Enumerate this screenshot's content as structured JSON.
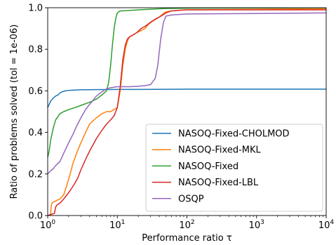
{
  "chart_data": {
    "type": "line",
    "title": "",
    "xlabel": "Performance ratio τ",
    "ylabel": "Ratio of problems solved (tol = 1e-06)",
    "xscale": "log",
    "xlim": [
      1,
      10000
    ],
    "ylim": [
      0,
      1.0
    ],
    "xticks": [
      {
        "value": 1,
        "base": "10",
        "exp": "0"
      },
      {
        "value": 10,
        "base": "10",
        "exp": "1"
      },
      {
        "value": 100,
        "base": "10",
        "exp": "2"
      },
      {
        "value": 1000,
        "base": "10",
        "exp": "3"
      },
      {
        "value": 10000,
        "base": "10",
        "exp": "4"
      }
    ],
    "yticks": [
      {
        "value": 0.0,
        "label": "0.0"
      },
      {
        "value": 0.2,
        "label": "0.2"
      },
      {
        "value": 0.4,
        "label": "0.4"
      },
      {
        "value": 0.6,
        "label": "0.6"
      },
      {
        "value": 0.8,
        "label": "0.8"
      },
      {
        "value": 1.0,
        "label": "1.0"
      }
    ],
    "grid": false,
    "legend_position": "lower-right",
    "series": [
      {
        "name": "NASOQ-Fixed-CHOLMOD",
        "color": "#1f77b4",
        "x": [
          1,
          1.05,
          1.1,
          1.2,
          1.3,
          1.4,
          1.5,
          1.6,
          1.8,
          2.0,
          2.5,
          3,
          5,
          10,
          20,
          100,
          1000,
          10000
        ],
        "y": [
          0.52,
          0.535,
          0.55,
          0.565,
          0.575,
          0.58,
          0.59,
          0.595,
          0.6,
          0.602,
          0.604,
          0.605,
          0.606,
          0.607,
          0.607,
          0.608,
          0.608,
          0.608
        ]
      },
      {
        "name": "NASOQ-Fixed-MKL",
        "color": "#ff7f0e",
        "x": [
          1,
          1.05,
          1.1,
          1.12,
          1.15,
          1.2,
          1.3,
          1.5,
          1.7,
          1.9,
          2.1,
          2.3,
          2.6,
          3,
          3.5,
          4,
          5,
          6,
          7,
          8,
          9,
          10,
          11,
          12,
          13,
          14,
          15,
          17,
          19,
          22,
          25,
          28,
          32,
          36,
          40,
          45,
          50,
          60,
          100,
          1000,
          10000
        ],
        "y": [
          0.0,
          0.0,
          0.0,
          0.04,
          0.06,
          0.065,
          0.07,
          0.08,
          0.1,
          0.15,
          0.2,
          0.25,
          0.3,
          0.35,
          0.4,
          0.44,
          0.47,
          0.49,
          0.5,
          0.5,
          0.51,
          0.52,
          0.6,
          0.72,
          0.8,
          0.84,
          0.86,
          0.87,
          0.88,
          0.89,
          0.9,
          0.92,
          0.935,
          0.945,
          0.955,
          0.97,
          0.98,
          0.985,
          0.99,
          0.993,
          0.995
        ]
      },
      {
        "name": "NASOQ-Fixed",
        "color": "#2ca02c",
        "x": [
          1,
          1.05,
          1.1,
          1.2,
          1.3,
          1.5,
          1.7,
          2.0,
          2.5,
          3,
          4,
          5,
          6,
          7,
          7.5,
          8,
          8.5,
          9,
          9.5,
          10,
          10.5,
          11,
          12,
          15,
          20,
          30,
          40,
          50,
          100,
          1000,
          10000
        ],
        "y": [
          0.28,
          0.31,
          0.36,
          0.42,
          0.46,
          0.49,
          0.5,
          0.51,
          0.52,
          0.53,
          0.545,
          0.56,
          0.58,
          0.6,
          0.64,
          0.72,
          0.82,
          0.9,
          0.95,
          0.975,
          0.98,
          0.985,
          0.985,
          0.987,
          0.99,
          0.993,
          0.995,
          0.996,
          0.998,
          0.999,
          1.0
        ]
      },
      {
        "name": "NASOQ-Fixed-LBL",
        "color": "#d62728",
        "x": [
          1,
          1.1,
          1.25,
          1.3,
          1.35,
          1.5,
          1.7,
          1.9,
          2.1,
          2.4,
          2.7,
          3,
          3.5,
          4,
          5,
          6,
          7,
          8,
          9,
          10,
          11,
          12,
          13,
          14,
          15,
          17,
          19,
          22,
          25,
          30,
          35,
          40,
          45,
          50,
          60,
          100,
          1000,
          10000
        ],
        "y": [
          0.0,
          0.005,
          0.01,
          0.04,
          0.05,
          0.06,
          0.08,
          0.1,
          0.12,
          0.15,
          0.18,
          0.22,
          0.27,
          0.31,
          0.37,
          0.41,
          0.44,
          0.46,
          0.48,
          0.52,
          0.62,
          0.75,
          0.82,
          0.85,
          0.86,
          0.87,
          0.88,
          0.9,
          0.91,
          0.93,
          0.945,
          0.955,
          0.965,
          0.975,
          0.985,
          0.99,
          0.99,
          0.99
        ]
      },
      {
        "name": "OSQP",
        "color": "#9467bd",
        "x": [
          1,
          1.1,
          1.2,
          1.3,
          1.5,
          1.7,
          2.0,
          2.3,
          2.6,
          3.0,
          3.5,
          4,
          4.5,
          5,
          6,
          7,
          8,
          10,
          15,
          20,
          25,
          30,
          35,
          38,
          42,
          46,
          50,
          60,
          100,
          1000,
          10000
        ],
        "y": [
          0.2,
          0.215,
          0.225,
          0.24,
          0.26,
          0.3,
          0.35,
          0.39,
          0.43,
          0.47,
          0.51,
          0.535,
          0.555,
          0.575,
          0.595,
          0.61,
          0.615,
          0.62,
          0.62,
          0.622,
          0.625,
          0.63,
          0.66,
          0.72,
          0.85,
          0.93,
          0.96,
          0.965,
          0.97,
          0.972,
          0.975
        ]
      }
    ]
  }
}
